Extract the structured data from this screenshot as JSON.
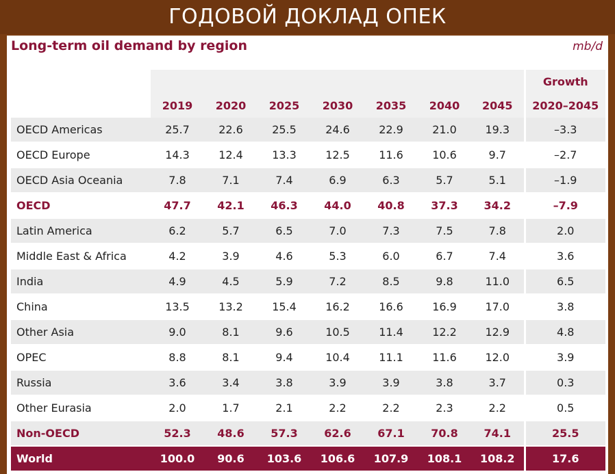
{
  "banner": {
    "title": "ГОДОВОЙ ДОКЛАД ОПЕК"
  },
  "card": {
    "title": "Long-term oil demand by region",
    "unit": "mb/d"
  },
  "table": {
    "years": [
      "2019",
      "2020",
      "2025",
      "2030",
      "2035",
      "2040",
      "2045"
    ],
    "growth_header_line1": "Growth",
    "growth_header_line2": "2020–2045",
    "rows": [
      {
        "region": "OECD Americas",
        "values": [
          "25.7",
          "22.6",
          "25.5",
          "24.6",
          "22.9",
          "21.0",
          "19.3"
        ],
        "growth": "–3.3"
      },
      {
        "region": "OECD Europe",
        "values": [
          "14.3",
          "12.4",
          "13.3",
          "12.5",
          "11.6",
          "10.6",
          "9.7"
        ],
        "growth": "–2.7"
      },
      {
        "region": "OECD Asia Oceania",
        "values": [
          "7.8",
          "7.1",
          "7.4",
          "6.9",
          "6.3",
          "5.7",
          "5.1"
        ],
        "growth": "–1.9"
      },
      {
        "region": "OECD",
        "values": [
          "47.7",
          "42.1",
          "46.3",
          "44.0",
          "40.8",
          "37.3",
          "34.2"
        ],
        "growth": "–7.9"
      },
      {
        "region": "Latin America",
        "values": [
          "6.2",
          "5.7",
          "6.5",
          "7.0",
          "7.3",
          "7.5",
          "7.8"
        ],
        "growth": "2.0"
      },
      {
        "region": "Middle East & Africa",
        "values": [
          "4.2",
          "3.9",
          "4.6",
          "5.3",
          "6.0",
          "6.7",
          "7.4"
        ],
        "growth": "3.6"
      },
      {
        "region": "India",
        "values": [
          "4.9",
          "4.5",
          "5.9",
          "7.2",
          "8.5",
          "9.8",
          "11.0"
        ],
        "growth": "6.5"
      },
      {
        "region": "China",
        "values": [
          "13.5",
          "13.2",
          "15.4",
          "16.2",
          "16.6",
          "16.9",
          "17.0"
        ],
        "growth": "3.8"
      },
      {
        "region": "Other Asia",
        "values": [
          "9.0",
          "8.1",
          "9.6",
          "10.5",
          "11.4",
          "12.2",
          "12.9"
        ],
        "growth": "4.8"
      },
      {
        "region": "OPEC",
        "values": [
          "8.8",
          "8.1",
          "9.4",
          "10.4",
          "11.1",
          "11.6",
          "12.0"
        ],
        "growth": "3.9"
      },
      {
        "region": "Russia",
        "values": [
          "3.6",
          "3.4",
          "3.8",
          "3.9",
          "3.9",
          "3.8",
          "3.7"
        ],
        "growth": "0.3"
      },
      {
        "region": "Other Eurasia",
        "values": [
          "2.0",
          "1.7",
          "2.1",
          "2.2",
          "2.2",
          "2.3",
          "2.2"
        ],
        "growth": "0.5"
      },
      {
        "region": "Non-OECD",
        "values": [
          "52.3",
          "48.6",
          "57.3",
          "62.6",
          "67.1",
          "70.8",
          "74.1"
        ],
        "growth": "25.5"
      },
      {
        "region": "World",
        "values": [
          "100.0",
          "90.6",
          "103.6",
          "106.6",
          "107.9",
          "108.1",
          "108.2"
        ],
        "growth": "17.6"
      }
    ]
  },
  "colors": {
    "banner_bg": "#6e3610",
    "frame": "#7a3d12",
    "accent": "#8a1538",
    "row_shade": "#eaeaea"
  }
}
